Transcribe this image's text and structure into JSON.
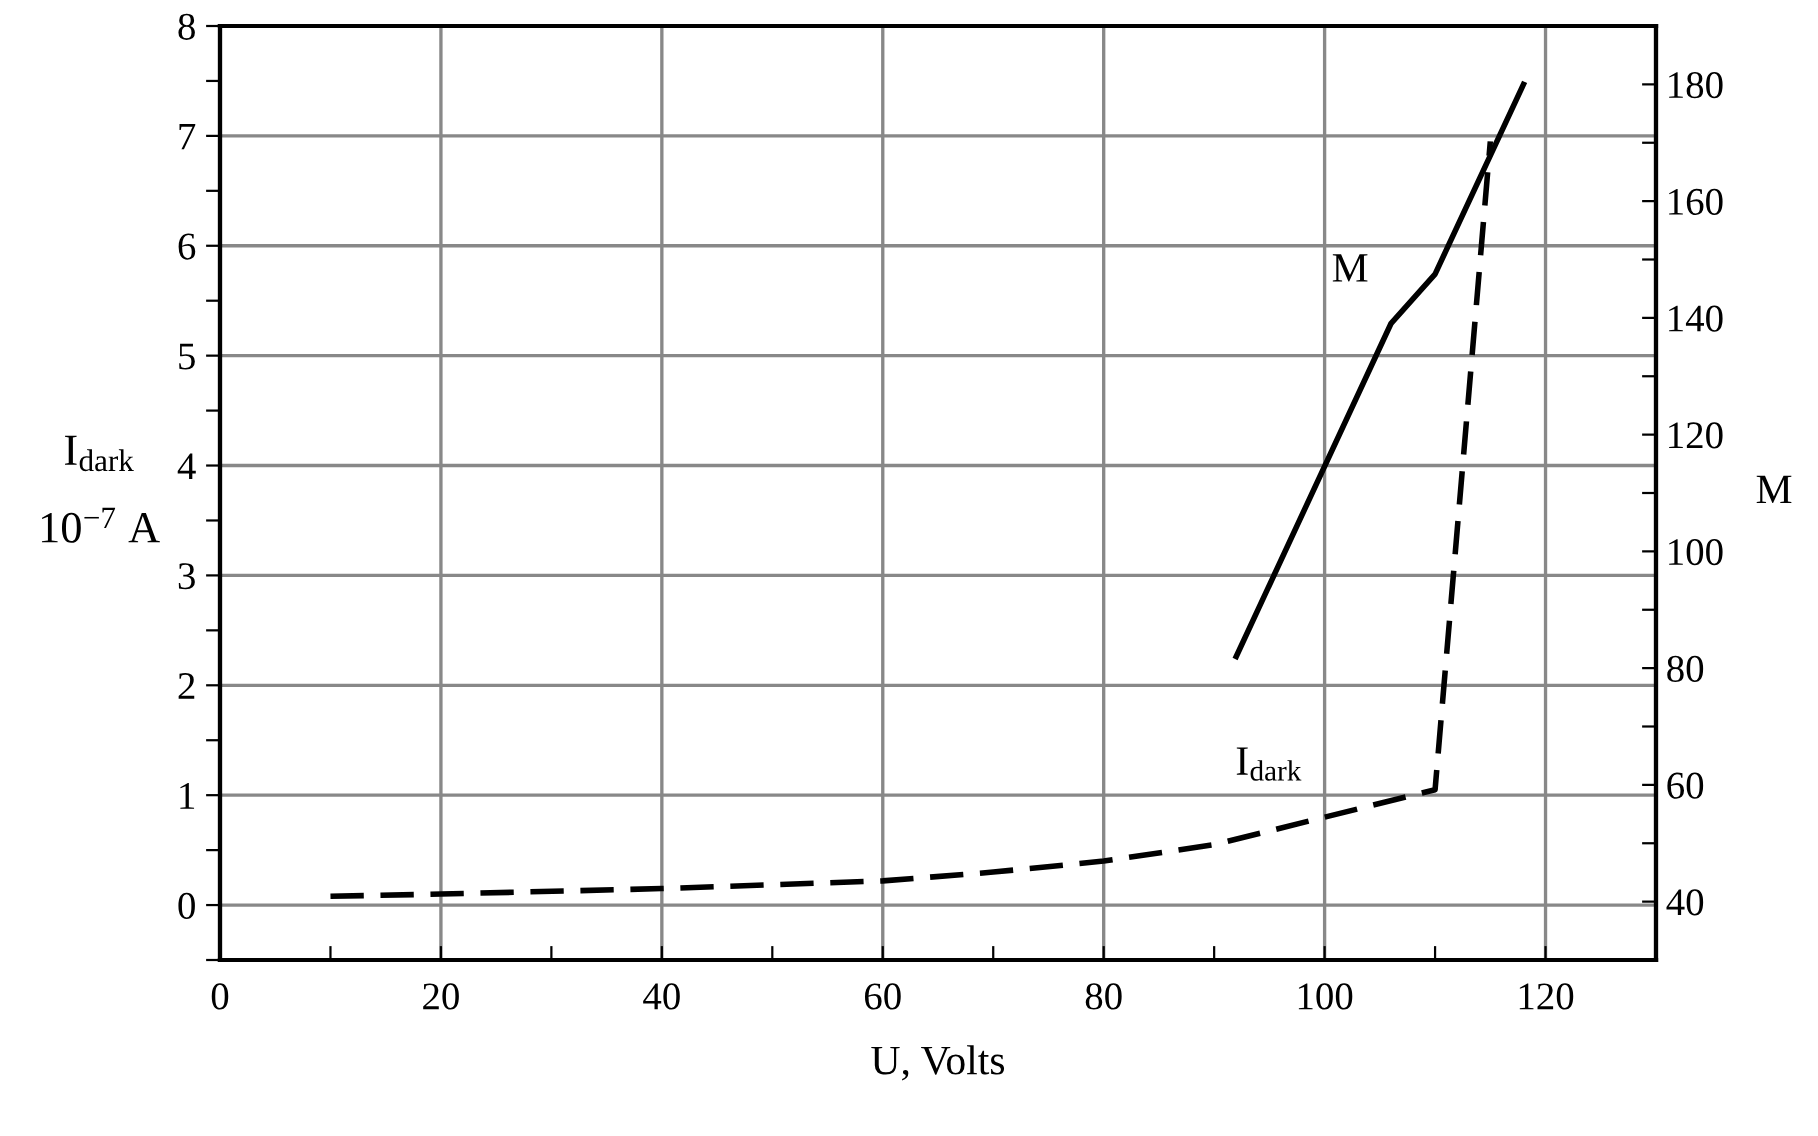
{
  "chart_data": {
    "type": "line",
    "xlabel": "U, Volts",
    "ylabel": "I$_{dark}$\n10$^{−7}$ A",
    "y2label": "M",
    "xlim": [
      0,
      130
    ],
    "xticks": [
      0,
      {
        "value": 10,
        "label": null
      },
      20,
      {
        "value": 30,
        "label": null
      },
      40,
      {
        "value": 50,
        "label": null
      },
      60,
      {
        "value": 70,
        "label": null
      },
      80,
      {
        "value": 90,
        "label": null
      },
      100,
      {
        "value": 110,
        "label": null
      },
      120,
      {
        "value": 130,
        "label": null
      }
    ],
    "ylim": [
      -0.5,
      8
    ],
    "yticks": [
      {
        "value": -0.5,
        "label": null
      },
      0,
      {
        "value": 0.5,
        "label": null
      },
      1,
      {
        "value": 1.5,
        "label": null
      },
      2,
      {
        "value": 2.5,
        "label": null
      },
      3,
      {
        "value": 3.5,
        "label": null
      },
      4,
      {
        "value": 4.5,
        "label": null
      },
      5,
      {
        "value": 5.5,
        "label": null
      },
      6,
      {
        "value": 6.5,
        "label": null
      },
      7,
      {
        "value": 7.5,
        "label": null
      },
      8
    ],
    "y2lim": [
      30,
      190
    ],
    "y2ticks": [
      40,
      {
        "value": 50,
        "label": null
      },
      60,
      {
        "value": 70,
        "label": null
      },
      80,
      {
        "value": 90,
        "label": null
      },
      100,
      {
        "value": 110,
        "label": null
      },
      120,
      {
        "value": 130,
        "label": null
      },
      140,
      {
        "value": 150,
        "label": null
      },
      160,
      {
        "value": 170,
        "label": null
      },
      180
    ],
    "grid": true,
    "legend": false,
    "marker": "none",
    "series": [
      {
        "name": "I$_{dark}$",
        "color": "#000000",
        "line_style": "dashed",
        "x": [
          10,
          20,
          40,
          60,
          70,
          80,
          90,
          100,
          110,
          115
        ],
        "values": [
          0.08,
          0.1,
          0.15,
          0.22,
          0.3,
          0.4,
          0.55,
          0.8,
          1.05,
          6.95
        ]
      },
      {
        "name": "M",
        "color": "#000000",
        "line_style": "solid",
        "axis": "y2",
        "x": [
          92,
          106,
          110,
          118
        ],
        "values": [
          82,
          139,
          147.5,
          180
        ]
      }
    ]
  }
}
